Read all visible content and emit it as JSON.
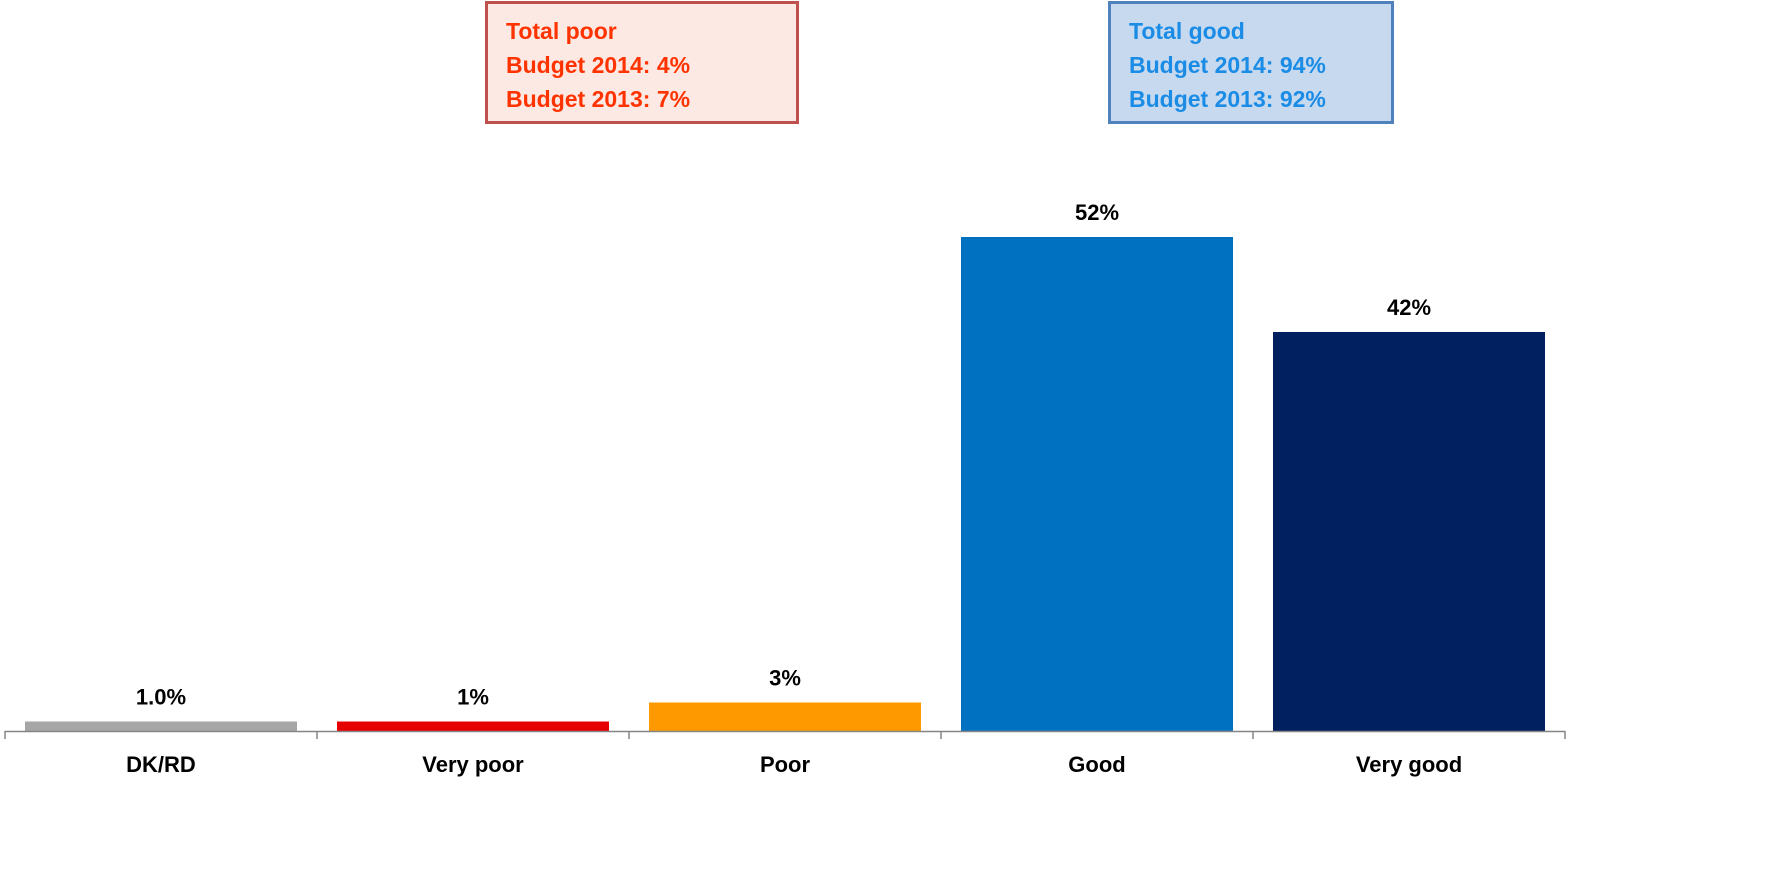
{
  "chart_data": {
    "type": "bar",
    "title": "",
    "xlabel": "",
    "ylabel": "",
    "ylim": [
      0,
      60
    ],
    "categories": [
      "DK/RD",
      "Very poor",
      "Poor",
      "Good",
      "Very good"
    ],
    "values": [
      1.0,
      1,
      3,
      52,
      42
    ],
    "data_labels": [
      "1.0%",
      "1%",
      "3%",
      "52%",
      "42%"
    ],
    "colors": [
      "#a6a6a6",
      "#e60000",
      "#ff9900",
      "#0070c0",
      "#002060"
    ],
    "grid": false,
    "legend": "none"
  },
  "callouts": {
    "poor": {
      "title": "Total poor",
      "line1": "Budget 2014: 4%",
      "line2": "Budget 2013: 7%",
      "text_color": "#ff3300",
      "border_color": "#c0504d",
      "fill_color": "#fde9e3"
    },
    "good": {
      "title": "Total good",
      "line1": "Budget 2014: 94%",
      "line2": "Budget 2013: 92%",
      "text_color": "#1b8ce6",
      "border_color": "#4f81bd",
      "fill_color": "#c6d9ef"
    }
  }
}
